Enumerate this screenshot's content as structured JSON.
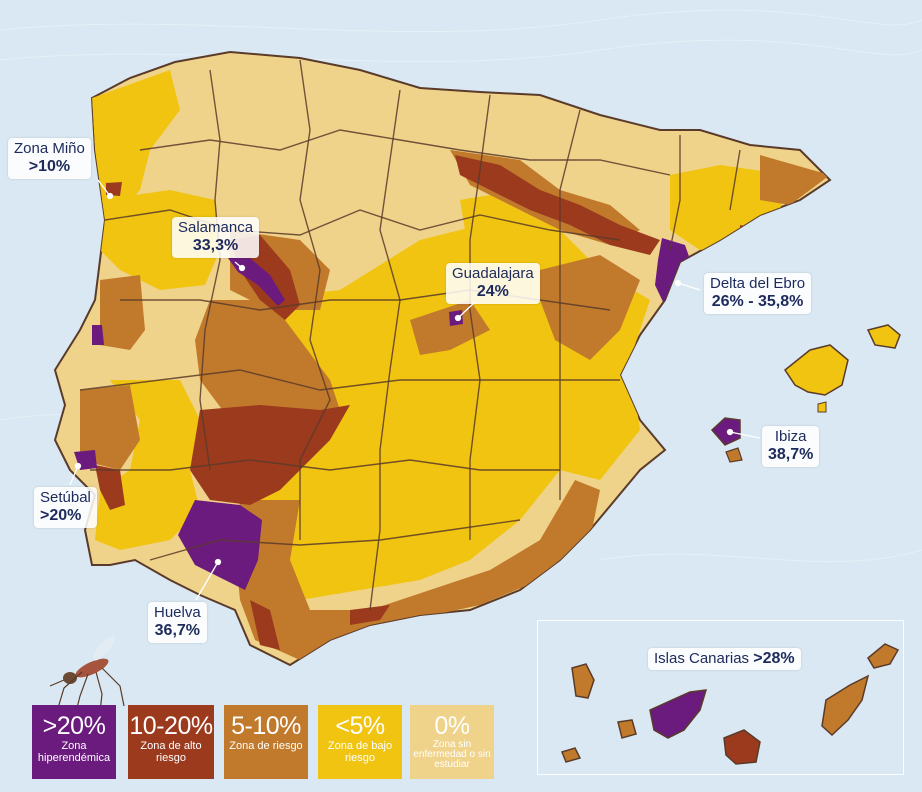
{
  "colors": {
    "background": "#d9e8f2",
    "hyperendemic": "#6a1b7d",
    "high_risk": "#9c3a1e",
    "risk": "#c17a2c",
    "low_risk": "#f0c410",
    "no_disease": "#f0d38a",
    "border": "#5a3b2a",
    "callout_text": "#1d2a5c"
  },
  "callouts": [
    {
      "id": "mino",
      "name": "Zona Miño",
      "value": ">10%"
    },
    {
      "id": "salamanca",
      "name": "Salamanca",
      "value": "33,3%"
    },
    {
      "id": "guadalajara",
      "name": "Guadalajara",
      "value": "24%"
    },
    {
      "id": "delta",
      "name": "Delta del Ebro",
      "value": "26% - 35,8%"
    },
    {
      "id": "ibiza",
      "name": "Ibiza",
      "value": "38,7%"
    },
    {
      "id": "setubal",
      "name": "Setúbal",
      "value": ">20%"
    },
    {
      "id": "huelva",
      "name": "Huelva",
      "value": "36,7%"
    },
    {
      "id": "canarias",
      "name": "Islas Canarias",
      "value": ">28%"
    }
  ],
  "legend": [
    {
      "id": "hyper",
      "pct": ">20%",
      "desc": "Zona hiperendémica"
    },
    {
      "id": "alto",
      "pct": "10-20%",
      "desc": "Zona de alto riesgo"
    },
    {
      "id": "riesgo",
      "pct": "5-10%",
      "desc": "Zona de riesgo"
    },
    {
      "id": "bajo",
      "pct": "<5%",
      "desc": "Zona de bajo riesgo"
    },
    {
      "id": "sin",
      "pct": "0%",
      "desc": "Zona sin enfermedad o sin estudiar"
    }
  ],
  "icons": {
    "mosquito": "mosquito-icon"
  }
}
